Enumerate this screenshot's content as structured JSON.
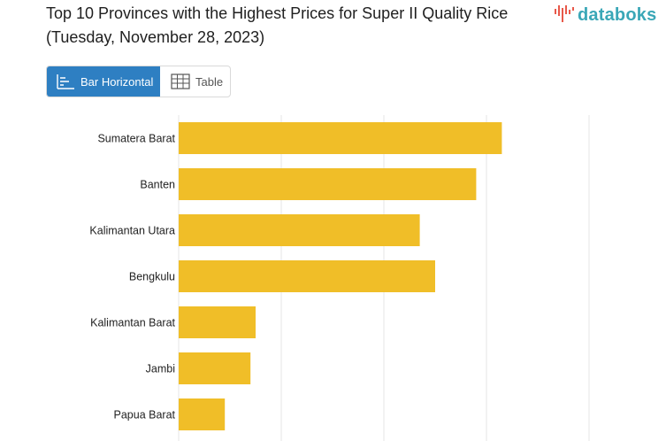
{
  "title": "Top 10 Provinces with the Highest Prices for Super II Quality Rice (Tuesday, November 28, 2023)",
  "logo": {
    "text": "databoks"
  },
  "tabs": [
    {
      "label": "Bar Horizontal",
      "icon": "bar-chart-icon",
      "active": true
    },
    {
      "label": "Table",
      "icon": "table-icon",
      "active": false
    }
  ],
  "colors": {
    "bar": "#f0be28",
    "grid": "#e6e6e6",
    "accent": "#2e7fc2",
    "brand": "#3aa7b7"
  },
  "chart_data": {
    "type": "bar",
    "orientation": "horizontal",
    "categories": [
      "Sumatera Barat",
      "Banten",
      "Kalimantan Utara",
      "Bengkulu",
      "Kalimantan Barat",
      "Jambi",
      "Papua Barat"
    ],
    "values": [
      15750,
      14500,
      11750,
      12500,
      3750,
      3500,
      2250
    ],
    "xlim": [
      0,
      20000
    ],
    "grid": true,
    "legend": "none"
  }
}
